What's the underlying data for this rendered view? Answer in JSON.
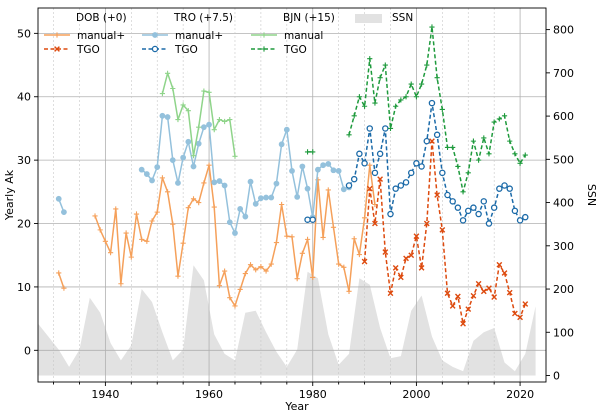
{
  "chart_data": {
    "type": "line",
    "title": "",
    "xlabel": "Year",
    "ylabel": "Yearly Ak",
    "y2label": "SSN",
    "xlim": [
      1927,
      2025
    ],
    "ylim": [
      -5,
      54
    ],
    "y2lim": [
      -15,
      850
    ],
    "xticks": [
      1940,
      1960,
      1980,
      2000,
      2020
    ],
    "yticks": [
      0,
      10,
      20,
      30,
      40,
      50
    ],
    "y2ticks": [
      0,
      100,
      200,
      300,
      400,
      500,
      600,
      700,
      800
    ],
    "grid": true,
    "legend_position": "top",
    "legend_headers": {
      "dob": "DOB (+0)",
      "tro": "TRO (+7.5)",
      "bjn": "BJN (+15)",
      "ssn": "SSN"
    },
    "series": [
      {
        "name": "manual+",
        "group": "DOB (+0)",
        "color": "#f5a05a",
        "style": "solid",
        "marker": "plus",
        "segments": [
          [
            [
              1931,
              12.2
            ],
            [
              1932,
              9.8
            ]
          ],
          [
            [
              1938,
              21.2
            ],
            [
              1939,
              19
            ],
            [
              1940,
              17.2
            ],
            [
              1941,
              15.4
            ],
            [
              1942,
              22.3
            ],
            [
              1943,
              10.5
            ],
            [
              1944,
              18.5
            ],
            [
              1945,
              14.7
            ],
            [
              1946,
              21.5
            ],
            [
              1947,
              17.5
            ],
            [
              1948,
              17.2
            ],
            [
              1949,
              20.4
            ],
            [
              1950,
              21.8
            ],
            [
              1951,
              27.2
            ],
            [
              1952,
              25
            ],
            [
              1953,
              19.9
            ],
            [
              1954,
              11.7
            ],
            [
              1955,
              16.9
            ],
            [
              1956,
              22.5
            ],
            [
              1957,
              23.9
            ],
            [
              1958,
              23.3
            ],
            [
              1959,
              26.4
            ],
            [
              1960,
              29.2
            ],
            [
              1961,
              22.6
            ],
            [
              1962,
              10.2
            ],
            [
              1963,
              12.5
            ],
            [
              1964,
              8.3
            ],
            [
              1965,
              7.0
            ],
            [
              1966,
              9.6
            ],
            [
              1967,
              12.1
            ],
            [
              1968,
              13.5
            ],
            [
              1969,
              12.7
            ],
            [
              1970,
              13.2
            ],
            [
              1971,
              12.5
            ],
            [
              1972,
              13.6
            ],
            [
              1973,
              17
            ],
            [
              1974,
              23
            ],
            [
              1975,
              18
            ],
            [
              1976,
              17.9
            ],
            [
              1977,
              11.3
            ],
            [
              1978,
              15.3
            ],
            [
              1979,
              17.5
            ],
            [
              1980,
              11.5
            ],
            [
              1981,
              26.9
            ],
            [
              1982,
              17.8
            ],
            [
              1983,
              25.3
            ],
            [
              1984,
              19.4
            ],
            [
              1985,
              13.6
            ],
            [
              1986,
              13.1
            ],
            [
              1987,
              9.3
            ],
            [
              1988,
              17.6
            ],
            [
              1989,
              15.1
            ],
            [
              1990,
              20.9
            ],
            [
              1991,
              29.2
            ],
            [
              1992,
              23
            ]
          ]
        ]
      },
      {
        "name": "TGO",
        "group": "DOB (+0)",
        "color": "#dd4a0e",
        "style": "dashed",
        "marker": "x",
        "segments": [
          [
            [
              1990,
              14
            ],
            [
              1991,
              25.5
            ],
            [
              1992,
              20
            ],
            [
              1993,
              27
            ],
            [
              1994,
              15.5
            ],
            [
              1995,
              9
            ],
            [
              1996,
              13
            ],
            [
              1997,
              11.5
            ],
            [
              1998,
              14.5
            ],
            [
              1999,
              15
            ],
            [
              2000,
              18
            ],
            [
              2001,
              13
            ],
            [
              2002,
              20
            ],
            [
              2003,
              33
            ],
            [
              2004,
              24.5
            ],
            [
              2005,
              19
            ],
            [
              2006,
              9
            ],
            [
              2007,
              7
            ],
            [
              2008,
              8.5
            ],
            [
              2009,
              4.2
            ],
            [
              2010,
              6.5
            ],
            [
              2011,
              8.6
            ],
            [
              2012,
              10.5
            ],
            [
              2013,
              9.3
            ],
            [
              2014,
              9.8
            ],
            [
              2015,
              8.4
            ],
            [
              2016,
              13.5
            ],
            [
              2017,
              12.2
            ],
            [
              2018,
              9.1
            ],
            [
              2019,
              5.8
            ],
            [
              2020,
              5.2
            ],
            [
              2021,
              7.3
            ]
          ]
        ]
      },
      {
        "name": "manual+",
        "group": "TRO (+7.5)",
        "color": "#94c1dc",
        "style": "solid",
        "marker": "circle",
        "segments": [
          [
            [
              1931,
              23.9
            ],
            [
              1932,
              21.8
            ]
          ],
          [
            [
              1947,
              28.5
            ],
            [
              1948,
              27.8
            ],
            [
              1949,
              26.8
            ],
            [
              1950,
              28.9
            ],
            [
              1951,
              37
            ],
            [
              1952,
              36.8
            ],
            [
              1953,
              30
            ],
            [
              1954,
              26.4
            ],
            [
              1955,
              30.4
            ],
            [
              1956,
              32.9
            ],
            [
              1957,
              29
            ],
            [
              1958,
              32.6
            ],
            [
              1959,
              35.2
            ],
            [
              1960,
              35.6
            ],
            [
              1961,
              26.5
            ],
            [
              1962,
              26.7
            ],
            [
              1963,
              26
            ],
            [
              1964,
              20.2
            ],
            [
              1965,
              18.5
            ],
            [
              1966,
              22.3
            ],
            [
              1967,
              21.1
            ],
            [
              1968,
              26.6
            ],
            [
              1969,
              23.1
            ],
            [
              1970,
              24
            ],
            [
              1971,
              24.1
            ],
            [
              1972,
              24.1
            ],
            [
              1973,
              26.3
            ],
            [
              1974,
              32.5
            ],
            [
              1975,
              34.8
            ],
            [
              1976,
              28.3
            ],
            [
              1977,
              24.2
            ],
            [
              1978,
              29
            ],
            [
              1979,
              25.5
            ],
            [
              1980,
              21
            ],
            [
              1981,
              28.5
            ],
            [
              1982,
              29.2
            ],
            [
              1983,
              29.4
            ],
            [
              1984,
              28.4
            ],
            [
              1985,
              28.3
            ],
            [
              1986,
              25.4
            ],
            [
              1987,
              25.7
            ]
          ]
        ]
      },
      {
        "name": "TGO",
        "group": "TRO (+7.5)",
        "color": "#1b6aa8",
        "style": "dashed",
        "marker": "circle-open",
        "segments": [
          [
            [
              1979,
              20.6
            ],
            [
              1980,
              20.6
            ]
          ],
          [
            [
              1987,
              26
            ],
            [
              1988,
              27
            ],
            [
              1989,
              31
            ],
            [
              1990,
              29.5
            ],
            [
              1991,
              35
            ],
            [
              1992,
              28
            ],
            [
              1993,
              31
            ],
            [
              1994,
              35
            ],
            [
              1995,
              21.5
            ],
            [
              1996,
              25.5
            ],
            [
              1997,
              26
            ],
            [
              1998,
              26.5
            ],
            [
              1999,
              28
            ],
            [
              2000,
              29.5
            ],
            [
              2001,
              29
            ],
            [
              2002,
              33
            ],
            [
              2003,
              39
            ],
            [
              2004,
              34
            ],
            [
              2005,
              28
            ],
            [
              2006,
              24.5
            ],
            [
              2007,
              23.5
            ],
            [
              2008,
              22.5
            ],
            [
              2009,
              20.5
            ],
            [
              2010,
              22
            ],
            [
              2011,
              22.5
            ],
            [
              2012,
              21.5
            ],
            [
              2013,
              23.5
            ],
            [
              2014,
              20
            ],
            [
              2015,
              22.5
            ],
            [
              2016,
              25.5
            ],
            [
              2017,
              26
            ],
            [
              2018,
              25.5
            ],
            [
              2019,
              22
            ],
            [
              2020,
              20.5
            ],
            [
              2021,
              21
            ]
          ]
        ]
      },
      {
        "name": "manual",
        "group": "BJN (+15)",
        "color": "#8fd48a",
        "style": "solid",
        "marker": "plus",
        "segments": [
          [
            [
              1951,
              40.5
            ],
            [
              1952,
              43.7
            ],
            [
              1953,
              41.3
            ],
            [
              1954,
              36.4
            ],
            [
              1955,
              38.7
            ],
            [
              1956,
              37.8
            ],
            [
              1957,
              30.7
            ],
            [
              1958,
              35.2
            ],
            [
              1959,
              40.9
            ],
            [
              1960,
              40.7
            ],
            [
              1961,
              34.8
            ],
            [
              1962,
              36.4
            ],
            [
              1963,
              36.1
            ],
            [
              1964,
              36.4
            ],
            [
              1965,
              30.6
            ]
          ]
        ]
      },
      {
        "name": "TGO",
        "group": "BJN (+15)",
        "color": "#1e9a3c",
        "style": "dashed",
        "marker": "plus",
        "segments": [
          [
            [
              1979,
              31.3
            ],
            [
              1980,
              31.3
            ]
          ],
          [
            [
              1987,
              34
            ],
            [
              1988,
              37
            ],
            [
              1989,
              40
            ],
            [
              1990,
              38.5
            ],
            [
              1991,
              46
            ],
            [
              1992,
              39
            ],
            [
              1993,
              43
            ],
            [
              1994,
              45
            ],
            [
              1995,
              35
            ],
            [
              1996,
              38.5
            ],
            [
              1997,
              39.5
            ],
            [
              1998,
              40
            ],
            [
              1999,
              42
            ],
            [
              2000,
              40
            ],
            [
              2001,
              42
            ],
            [
              2002,
              45
            ],
            [
              2003,
              51
            ],
            [
              2004,
              43
            ],
            [
              2005,
              38
            ],
            [
              2006,
              32
            ],
            [
              2007,
              32
            ],
            [
              2008,
              29
            ],
            [
              2009,
              25
            ],
            [
              2010,
              28
            ],
            [
              2011,
              33
            ],
            [
              2012,
              30
            ],
            [
              2013,
              33.5
            ],
            [
              2014,
              31
            ],
            [
              2015,
              36
            ],
            [
              2016,
              36.5
            ],
            [
              2017,
              37
            ],
            [
              2018,
              33
            ],
            [
              2019,
              31
            ],
            [
              2020,
              29.5
            ],
            [
              2021,
              30.8
            ]
          ]
        ]
      }
    ],
    "ssn": {
      "name": "SSN",
      "axis": "right",
      "type": "area",
      "color": "#e2e2e2",
      "x": [
        1927,
        1929,
        1931,
        1933,
        1935,
        1937,
        1939,
        1941,
        1943,
        1945,
        1947,
        1949,
        1951,
        1953,
        1955,
        1957,
        1959,
        1961,
        1963,
        1965,
        1967,
        1969,
        1971,
        1973,
        1975,
        1977,
        1979,
        1981,
        1983,
        1985,
        1987,
        1989,
        1991,
        1993,
        1995,
        1997,
        1999,
        2001,
        2003,
        2005,
        2007,
        2009,
        2011,
        2013,
        2015,
        2017,
        2019,
        2021,
        2023
      ],
      "values": [
        120,
        90,
        60,
        20,
        60,
        180,
        145,
        75,
        35,
        70,
        200,
        170,
        100,
        35,
        60,
        255,
        220,
        95,
        50,
        35,
        145,
        150,
        100,
        55,
        20,
        60,
        240,
        225,
        95,
        25,
        50,
        225,
        210,
        110,
        40,
        45,
        150,
        185,
        90,
        35,
        20,
        10,
        80,
        100,
        110,
        30,
        10,
        50,
        160
      ]
    }
  }
}
